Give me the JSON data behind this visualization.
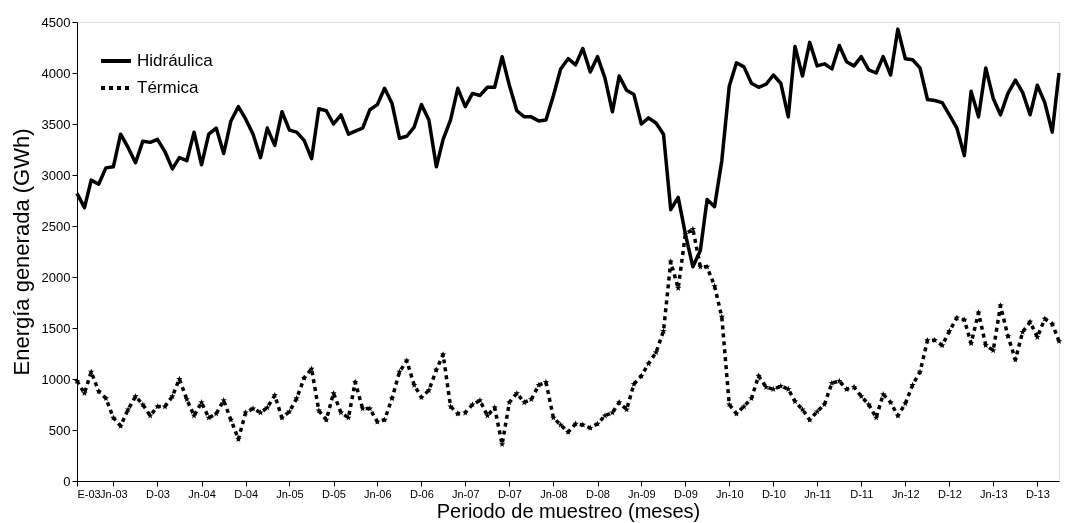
{
  "chart_data": {
    "type": "line",
    "xlabel": "Periodo de muestreo (meses)",
    "ylabel": "Energía generada (GWh)",
    "x": [
      "2003-01",
      "2003-02",
      "2003-03",
      "2003-04",
      "2003-05",
      "2003-06",
      "2003-07",
      "2003-08",
      "2003-09",
      "2003-10",
      "2003-11",
      "2003-12",
      "2004-01",
      "2004-02",
      "2004-03",
      "2004-04",
      "2004-05",
      "2004-06",
      "2004-07",
      "2004-08",
      "2004-09",
      "2004-10",
      "2004-11",
      "2004-12",
      "2005-01",
      "2005-02",
      "2005-03",
      "2005-04",
      "2005-05",
      "2005-06",
      "2005-07",
      "2005-08",
      "2005-09",
      "2005-10",
      "2005-11",
      "2005-12",
      "2006-01",
      "2006-02",
      "2006-03",
      "2006-04",
      "2006-05",
      "2006-06",
      "2006-07",
      "2006-08",
      "2006-09",
      "2006-10",
      "2006-11",
      "2006-12",
      "2007-01",
      "2007-02",
      "2007-03",
      "2007-04",
      "2007-05",
      "2007-06",
      "2007-07",
      "2007-08",
      "2007-09",
      "2007-10",
      "2007-11",
      "2007-12",
      "2008-01",
      "2008-02",
      "2008-03",
      "2008-04",
      "2008-05",
      "2008-06",
      "2008-07",
      "2008-08",
      "2008-09",
      "2008-10",
      "2008-11",
      "2008-12",
      "2009-01",
      "2009-02",
      "2009-03",
      "2009-04",
      "2009-05",
      "2009-06",
      "2009-07",
      "2009-08",
      "2009-09",
      "2009-10",
      "2009-11",
      "2009-12",
      "2010-01",
      "2010-02",
      "2010-03",
      "2010-04",
      "2010-05",
      "2010-06",
      "2010-07",
      "2010-08",
      "2010-09",
      "2010-10",
      "2010-11",
      "2010-12",
      "2011-01",
      "2011-02",
      "2011-03",
      "2011-04",
      "2011-05",
      "2011-06",
      "2011-07",
      "2011-08",
      "2011-09",
      "2011-10",
      "2011-11",
      "2011-12",
      "2012-01",
      "2012-02",
      "2012-03",
      "2012-04",
      "2012-05",
      "2012-06",
      "2012-07",
      "2012-08",
      "2012-09",
      "2012-10",
      "2012-11",
      "2012-12",
      "2013-01",
      "2013-02",
      "2013-03",
      "2013-04",
      "2013-05",
      "2013-06",
      "2013-07",
      "2013-08",
      "2013-09",
      "2013-10",
      "2013-11",
      "2013-12",
      "2014-01",
      "2014-02",
      "2014-03"
    ],
    "series": [
      {
        "name": "Hidráulica",
        "color": "#000000",
        "line_style": "solid",
        "marker": "none",
        "values": [
          2820,
          2680,
          2950,
          2910,
          3070,
          3080,
          3400,
          3270,
          3120,
          3330,
          3320,
          3350,
          3230,
          3060,
          3170,
          3140,
          3420,
          3100,
          3400,
          3460,
          3210,
          3530,
          3670,
          3550,
          3400,
          3170,
          3460,
          3290,
          3620,
          3440,
          3420,
          3340,
          3160,
          3650,
          3630,
          3500,
          3590,
          3400,
          3430,
          3460,
          3640,
          3690,
          3850,
          3700,
          3360,
          3380,
          3470,
          3690,
          3540,
          3080,
          3350,
          3540,
          3850,
          3670,
          3800,
          3780,
          3860,
          3860,
          4160,
          3880,
          3630,
          3570,
          3570,
          3530,
          3540,
          3780,
          4040,
          4140,
          4080,
          4240,
          4010,
          4160,
          3950,
          3620,
          3970,
          3830,
          3790,
          3500,
          3560,
          3510,
          3400,
          2660,
          2780,
          2420,
          2100,
          2260,
          2760,
          2690,
          3140,
          3870,
          4100,
          4060,
          3900,
          3860,
          3890,
          3980,
          3900,
          3570,
          4260,
          3970,
          4300,
          4070,
          4090,
          4040,
          4270,
          4110,
          4070,
          4160,
          4030,
          4000,
          4160,
          3980,
          4430,
          4140,
          4130,
          4050,
          3740,
          3730,
          3710,
          3590,
          3460,
          3190,
          3820,
          3570,
          4050,
          3750,
          3590,
          3800,
          3930,
          3810,
          3590,
          3880,
          3710,
          3420,
          4000
        ]
      },
      {
        "name": "Térmica",
        "color": "#000000",
        "line_style": "dotted",
        "marker": "star",
        "values": [
          980,
          860,
          1070,
          880,
          810,
          620,
          540,
          700,
          830,
          750,
          640,
          730,
          730,
          830,
          1000,
          800,
          640,
          770,
          620,
          660,
          790,
          600,
          410,
          670,
          710,
          670,
          720,
          840,
          620,
          680,
          810,
          1010,
          1100,
          690,
          600,
          860,
          670,
          620,
          970,
          710,
          710,
          580,
          600,
          810,
          1070,
          1180,
          940,
          820,
          890,
          1090,
          1240,
          730,
          660,
          670,
          750,
          790,
          640,
          720,
          360,
          770,
          860,
          770,
          800,
          940,
          970,
          620,
          550,
          480,
          560,
          550,
          520,
          560,
          640,
          670,
          770,
          700,
          950,
          1030,
          1150,
          1260,
          1470,
          2150,
          1890,
          2420,
          2470,
          2100,
          2100,
          1910,
          1610,
          750,
          660,
          730,
          810,
          1030,
          920,
          900,
          930,
          900,
          780,
          700,
          600,
          680,
          750,
          960,
          980,
          900,
          920,
          830,
          750,
          620,
          850,
          770,
          640,
          760,
          940,
          1070,
          1380,
          1380,
          1330,
          1470,
          1600,
          1580,
          1350,
          1650,
          1330,
          1280,
          1720,
          1420,
          1190,
          1460,
          1560,
          1410,
          1590,
          1540,
          1370
        ]
      }
    ],
    "xlim": [
      "2003-01",
      "2014-03"
    ],
    "xticks": [
      {
        "value": "2003-01",
        "label": "E-03"
      },
      {
        "value": "2003-06",
        "label": "Jn-03"
      },
      {
        "value": "2003-12",
        "label": "D-03"
      },
      {
        "value": "2004-06",
        "label": "Jn-04"
      },
      {
        "value": "2004-12",
        "label": "D-04"
      },
      {
        "value": "2005-06",
        "label": "Jn-05"
      },
      {
        "value": "2005-12",
        "label": "D-05"
      },
      {
        "value": "2006-06",
        "label": "Jn-06"
      },
      {
        "value": "2006-12",
        "label": "D-06"
      },
      {
        "value": "2007-06",
        "label": "Jn-07"
      },
      {
        "value": "2007-12",
        "label": "D-07"
      },
      {
        "value": "2008-06",
        "label": "Jn-08"
      },
      {
        "value": "2008-12",
        "label": "D-08"
      },
      {
        "value": "2009-06",
        "label": "Jn-09"
      },
      {
        "value": "2009-12",
        "label": "D-09"
      },
      {
        "value": "2010-06",
        "label": "Jn-10"
      },
      {
        "value": "2010-12",
        "label": "D-10"
      },
      {
        "value": "2011-06",
        "label": "Jn-11"
      },
      {
        "value": "2011-12",
        "label": "D-11"
      },
      {
        "value": "2012-06",
        "label": "Jn-12"
      },
      {
        "value": "2012-12",
        "label": "D-12"
      },
      {
        "value": "2013-06",
        "label": "Jn-13"
      },
      {
        "value": "2013-12",
        "label": "D-13"
      }
    ],
    "ylim": [
      0,
      4500
    ],
    "yticks": [
      0,
      500,
      1000,
      1500,
      2000,
      2500,
      3000,
      3500,
      4000,
      4500
    ],
    "grid": false,
    "legend": "top left"
  }
}
